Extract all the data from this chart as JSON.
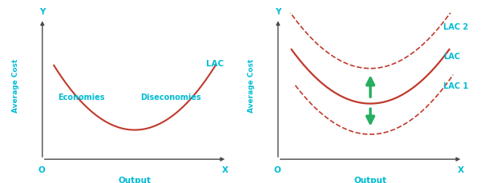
{
  "bg_color": "#ffffff",
  "cyan_color": "#00bcd4",
  "red_color": "#c0392b",
  "green_color": "#27ae60",
  "axis_color": "#4a4a4a",
  "left_chart": {
    "ylabel": "Average Cost",
    "xlabel": "Output",
    "curve_label": "LAC",
    "label_economies": "Economies",
    "label_diseconomies": "Diseconomies",
    "origin_label": "O",
    "x_label": "X",
    "y_label": "Y"
  },
  "right_chart": {
    "ylabel": "Average Cost",
    "xlabel": "Output",
    "curve_label_main": "LAC",
    "curve_label_upper": "LAC 2",
    "curve_label_lower": "LAC 1",
    "origin_label": "O",
    "x_label": "X",
    "y_label": "Y"
  }
}
